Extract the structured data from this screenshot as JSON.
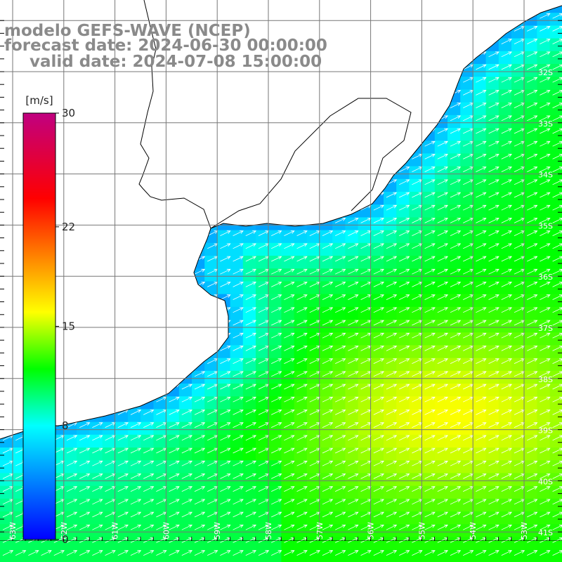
{
  "title": {
    "line1": "modelo GEFS-WAVE (NCEP)",
    "line2": "forecast date: 2024-06-30 00:00:00",
    "line3": "valid date: 2024-07-08 15:00:00"
  },
  "colorbar": {
    "unit_label": "[m/s]",
    "min": 0,
    "max": 30,
    "ticks": [
      {
        "value": 30,
        "label": "30"
      },
      {
        "value": 22,
        "label": "22"
      },
      {
        "value": 15,
        "label": "15"
      },
      {
        "value": 8,
        "label": "8"
      },
      {
        "value": 0,
        "label": "0"
      }
    ],
    "colors": [
      "#0000ff",
      "#00ffff",
      "#00ff00",
      "#ffff00",
      "#ff8000",
      "#ff0000",
      "#c00080"
    ],
    "color_stops": [
      0,
      8,
      12,
      16,
      20,
      24,
      30
    ]
  },
  "map": {
    "lat_labels": [
      "32S",
      "33S",
      "34S",
      "35S",
      "36S",
      "37S",
      "38S",
      "39S",
      "40S",
      "41S"
    ],
    "lon_labels": [
      "63W",
      "62W",
      "61W",
      "60W",
      "59W",
      "58W",
      "57W",
      "56W",
      "55W",
      "54W",
      "53W"
    ],
    "land_color": "#ffffff",
    "coast_color": "#000000",
    "grid_color": "#777777",
    "arrow_color": "#ffffff",
    "wind_direction": "toward north-east",
    "field_description_values": {
      "peak_speed_ms": 16,
      "nearshore_speed_ms": 5,
      "background_speed_ms": 12
    }
  }
}
